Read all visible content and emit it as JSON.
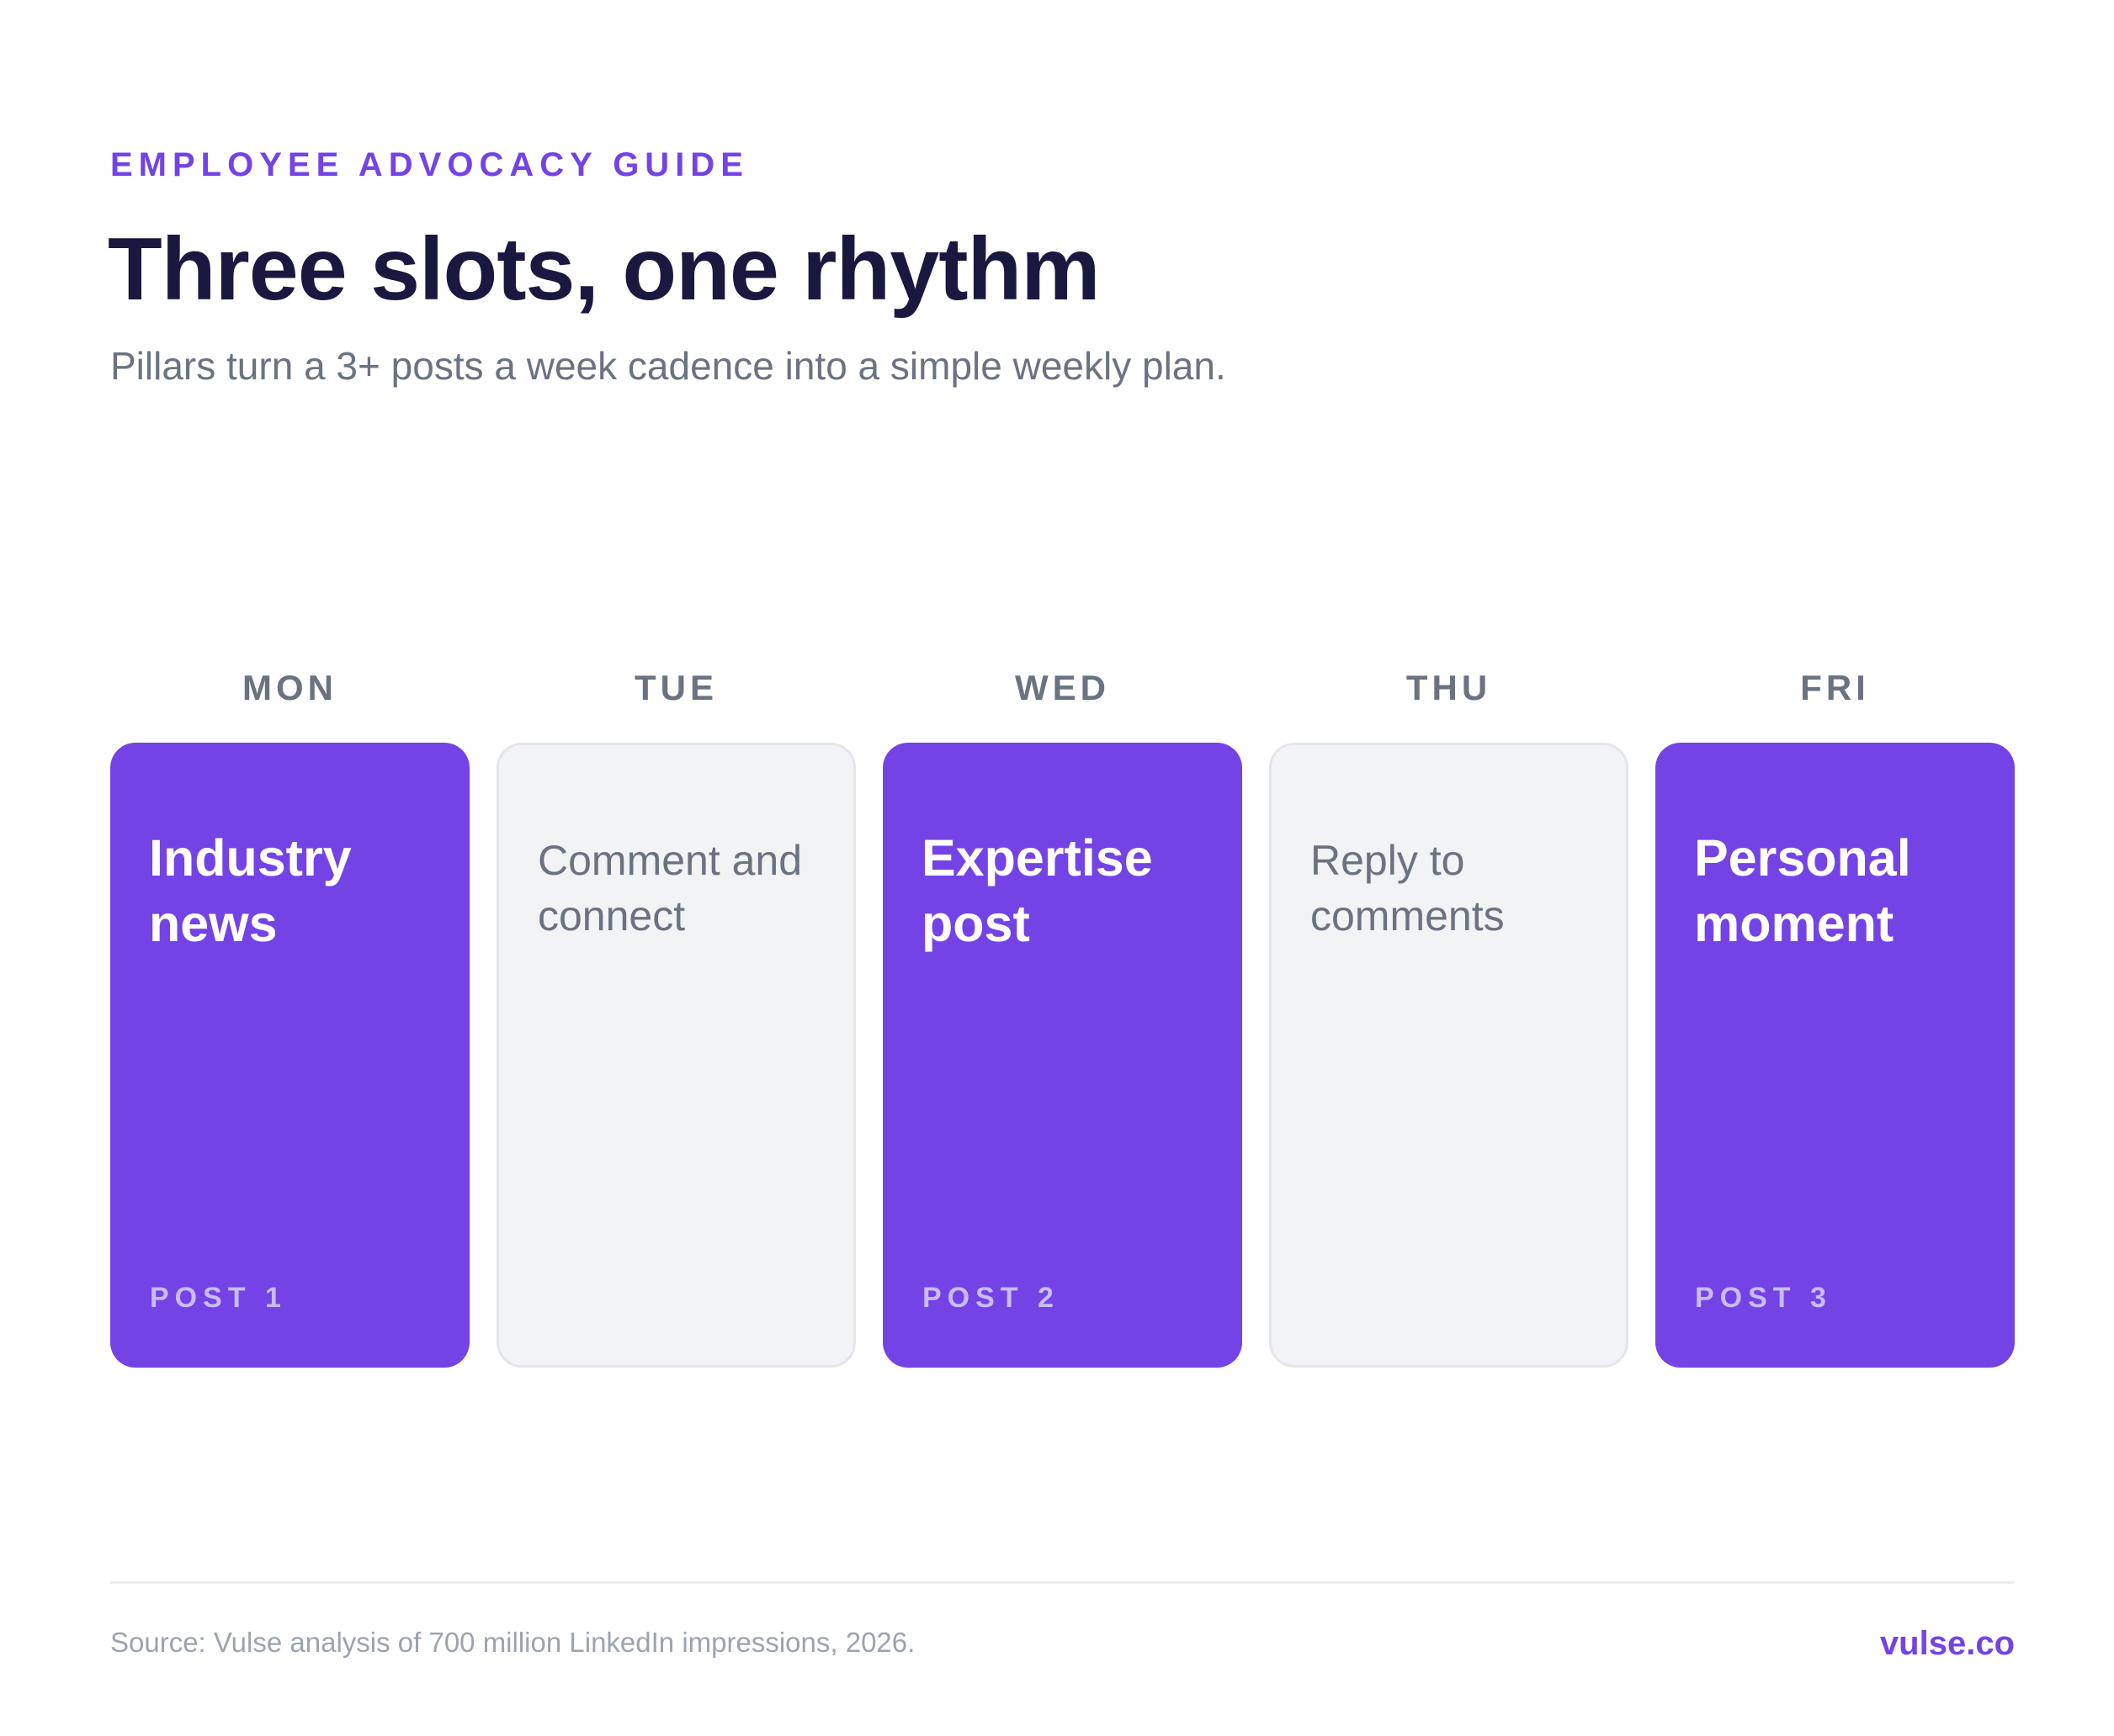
{
  "header": {
    "eyebrow": "EMPLOYEE ADVOCACY GUIDE",
    "title": "Three slots, one rhythm",
    "subtitle": "Pillars turn a 3+ posts a week cadence into a simple weekly plan."
  },
  "days": [
    {
      "label": "MON",
      "type": "post",
      "text": "Industry news",
      "tag": "POST 1"
    },
    {
      "label": "TUE",
      "type": "engage",
      "text": "Comment and connect",
      "tag": ""
    },
    {
      "label": "WED",
      "type": "post",
      "text": "Expertise post",
      "tag": "POST 2"
    },
    {
      "label": "THU",
      "type": "engage",
      "text": "Reply to comments",
      "tag": ""
    },
    {
      "label": "FRI",
      "type": "post",
      "text": "Personal moment",
      "tag": "POST 3"
    }
  ],
  "footer": {
    "source": "Source: Vulse analysis of 700 million LinkedIn impressions, 2026.",
    "brand": "vulse.co"
  },
  "colors": {
    "accent": "#7443e6",
    "title": "#1b1840",
    "muted": "#6b7280",
    "card_empty": "#f2f3f5"
  }
}
